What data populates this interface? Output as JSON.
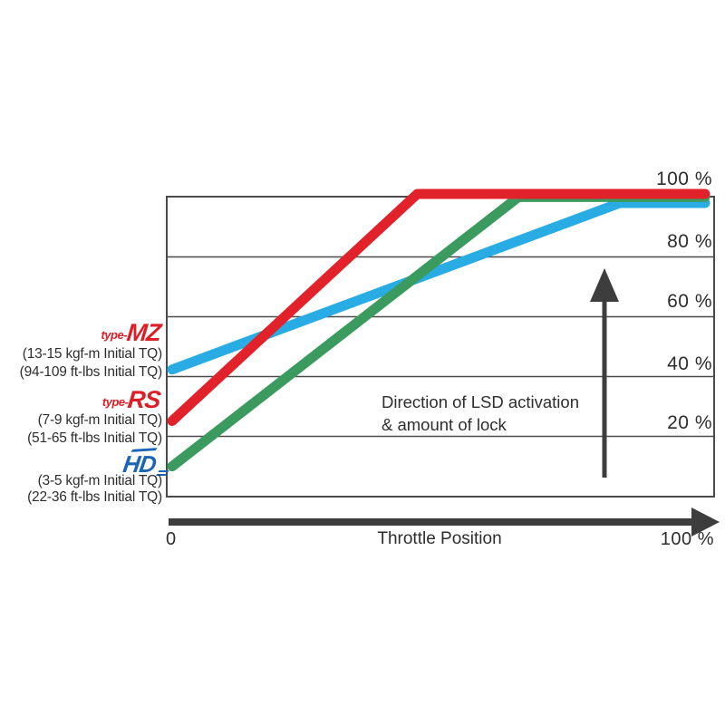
{
  "chart_data": {
    "type": "line",
    "title": "",
    "xlabel": "Throttle Position",
    "ylabel": "",
    "xlim": [
      0,
      100
    ],
    "ylim": [
      0,
      100
    ],
    "grid": "horizontal gridlines every 20%",
    "legend_position": "left outside",
    "x_tick_labels": {
      "zero": "0",
      "hundred": "100 %"
    },
    "y_tick_labels": [
      "100 %",
      "80 %",
      "60 %",
      "40 %",
      "20 %"
    ],
    "annotation": {
      "line1": "Direction of LSD activation",
      "line2": "& amount of lock"
    },
    "series": [
      {
        "name": "type-MZ",
        "color": "#29ace4",
        "points": [
          [
            0,
            42
          ],
          [
            84,
            97
          ],
          [
            100,
            97
          ]
        ]
      },
      {
        "name": "HD",
        "color": "#3b9b5f",
        "points": [
          [
            0,
            10
          ],
          [
            65,
            99
          ],
          [
            100,
            99
          ]
        ]
      },
      {
        "name": "type-RS",
        "color": "#e2222b",
        "points": [
          [
            0,
            25
          ],
          [
            46,
            100
          ],
          [
            100,
            100
          ]
        ]
      }
    ]
  },
  "legend": {
    "items": [
      {
        "prefix": "type-",
        "name": "MZ",
        "logo_color": "#db1f26",
        "torque_lines": [
          "(13-15 kgf-m Initial TQ)",
          "(94-109 ft-lbs Initial TQ)"
        ]
      },
      {
        "prefix": "type-",
        "name": "RS",
        "logo_color": "#db1f26",
        "torque_lines": [
          "(7-9 kgf-m Initial TQ)",
          "(51-65 ft-lbs Initial TQ)"
        ]
      },
      {
        "prefix": "",
        "name": "HD",
        "logo_color": "#1b64b6",
        "torque_lines": [
          "(3-5 kgf-m Initial TQ)",
          "(22-36 ft-lbs Initial TQ)"
        ]
      }
    ]
  },
  "colors": {
    "line_mz": "#29ace4",
    "line_rs": "#e2222b",
    "line_hd": "#3b9b5f",
    "grid": "#4a4a4a",
    "arrow": "#3d3d3d",
    "text": "#2d2d2d",
    "background": "#ffffff"
  }
}
